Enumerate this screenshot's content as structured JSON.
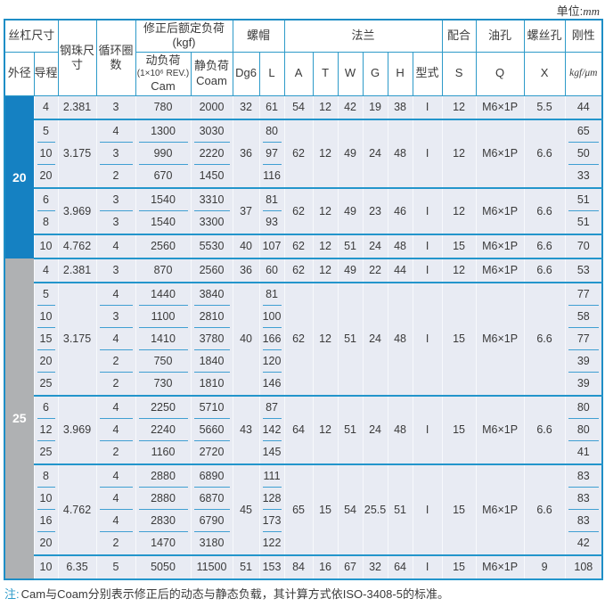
{
  "unit_label": "单位:",
  "unit_value": "mm",
  "header": {
    "screw_size": "丝杠尺寸",
    "outer_dia": "外径",
    "lead": "导程",
    "ball_size": "钢珠尺寸",
    "circuits": "循环圈数",
    "rated_load": "修正后额定负荷(kgf)",
    "dynamic_load_1": "动负荷",
    "dynamic_load_2": "(1×10⁶ REV.)",
    "dynamic_load_3": "Cam",
    "static_load_1": "静负荷",
    "static_load_2": "Coam",
    "nut": "螺帽",
    "dg6": "Dg6",
    "L": "L",
    "flange": "法兰",
    "A": "A",
    "T": "T",
    "W": "W",
    "G": "G",
    "H": "H",
    "type": "型式",
    "fit": "配合",
    "S": "S",
    "oil_hole": "油孔",
    "Q": "Q",
    "screw_hole": "螺丝孔",
    "X": "X",
    "rigidity": "刚性",
    "rigidity_unit": "kgf/μm"
  },
  "colors": {
    "od20_bg": "#1581C2",
    "od25_bg": "#AFB1B3",
    "line_blue": "#2395CB",
    "cell_bg": "#E8EBF3"
  },
  "od_groups": [
    {
      "od": "20",
      "bg": "#1581C2",
      "rows": 7
    },
    {
      "od": "25",
      "bg": "#AFB1B3",
      "rows": 14
    }
  ],
  "rows": [
    {
      "lead": "4",
      "ball": {
        "v": "2.381",
        "span": 1
      },
      "circ": "3",
      "cam": "780",
      "coam": "2000",
      "dg6": {
        "v": "32",
        "span": 1
      },
      "L": "61",
      "flange": {
        "span": 1,
        "A": "54",
        "T": "12",
        "W": "42",
        "G": "19",
        "H": "38",
        "type": "I",
        "S": "12",
        "Q": "M6×1P",
        "X": "5.5"
      },
      "rig": "44"
    },
    {
      "lead": "5",
      "ball": {
        "v": "3.175",
        "span": 3
      },
      "circ": "4",
      "cam": "1300",
      "coam": "3030",
      "dg6": {
        "v": "36",
        "span": 3
      },
      "L": "80",
      "flange": {
        "span": 3,
        "A": "62",
        "T": "12",
        "W": "49",
        "G": "24",
        "H": "48",
        "type": "I",
        "S": "12",
        "Q": "M6×1P",
        "X": "6.6"
      },
      "rig": "65"
    },
    {
      "lead": "10",
      "circ": "3",
      "cam": "990",
      "coam": "2220",
      "L": "97",
      "rig": "50"
    },
    {
      "lead": "20",
      "circ": "2",
      "cam": "670",
      "coam": "1450",
      "L": "116",
      "rig": "33"
    },
    {
      "lead": "6",
      "ball": {
        "v": "3.969",
        "span": 2
      },
      "circ": "3",
      "cam": "1540",
      "coam": "3310",
      "dg6": {
        "v": "37",
        "span": 2
      },
      "L": "81",
      "flange": {
        "span": 2,
        "A": "62",
        "T": "12",
        "W": "49",
        "G": "23",
        "H": "46",
        "type": "I",
        "S": "12",
        "Q": "M6×1P",
        "X": "6.6"
      },
      "rig": "51"
    },
    {
      "lead": "8",
      "circ": "3",
      "cam": "1540",
      "coam": "3300",
      "L": "93",
      "rig": "51"
    },
    {
      "lead": "10",
      "ball": {
        "v": "4.762",
        "span": 1
      },
      "circ": "4",
      "cam": "2560",
      "coam": "5530",
      "dg6": {
        "v": "40",
        "span": 1
      },
      "L": "107",
      "flange": {
        "span": 1,
        "A": "62",
        "T": "12",
        "W": "51",
        "G": "24",
        "H": "48",
        "type": "I",
        "S": "15",
        "Q": "M6×1P",
        "X": "6.6"
      },
      "rig": "70"
    },
    {
      "lead": "4",
      "ball": {
        "v": "2.381",
        "span": 1
      },
      "circ": "3",
      "cam": "870",
      "coam": "2560",
      "dg6": {
        "v": "36",
        "span": 1
      },
      "L": "60",
      "flange": {
        "span": 1,
        "A": "62",
        "T": "12",
        "W": "49",
        "G": "22",
        "H": "44",
        "type": "I",
        "S": "12",
        "Q": "M6×1P",
        "X": "6.6"
      },
      "rig": "53"
    },
    {
      "lead": "5",
      "ball": {
        "v": "3.175",
        "span": 5
      },
      "circ": "4",
      "cam": "1440",
      "coam": "3840",
      "dg6": {
        "v": "40",
        "span": 5
      },
      "L": "81",
      "flange": {
        "span": 5,
        "A": "62",
        "T": "12",
        "W": "51",
        "G": "24",
        "H": "48",
        "type": "I",
        "S": "15",
        "Q": "M6×1P",
        "X": "6.6"
      },
      "rig": "77"
    },
    {
      "lead": "10",
      "circ": "3",
      "cam": "1100",
      "coam": "2810",
      "L": "100",
      "rig": "58"
    },
    {
      "lead": "15",
      "circ": "4",
      "cam": "1410",
      "coam": "3780",
      "L": "166",
      "rig": "77"
    },
    {
      "lead": "20",
      "circ": "2",
      "cam": "750",
      "coam": "1840",
      "L": "120",
      "rig": "39"
    },
    {
      "lead": "25",
      "circ": "2",
      "cam": "730",
      "coam": "1810",
      "L": "146",
      "rig": "39"
    },
    {
      "lead": "6",
      "ball": {
        "v": "3.969",
        "span": 3
      },
      "circ": "4",
      "cam": "2250",
      "coam": "5710",
      "dg6": {
        "v": "43",
        "span": 3
      },
      "L": "87",
      "flange": {
        "span": 3,
        "A": "64",
        "T": "12",
        "W": "51",
        "G": "24",
        "H": "48",
        "type": "I",
        "S": "15",
        "Q": "M6×1P",
        "X": "6.6"
      },
      "rig": "80"
    },
    {
      "lead": "12",
      "circ": "4",
      "cam": "2240",
      "coam": "5660",
      "L": "142",
      "rig": "80"
    },
    {
      "lead": "25",
      "circ": "2",
      "cam": "1160",
      "coam": "2720",
      "L": "145",
      "rig": "41"
    },
    {
      "lead": "8",
      "ball": {
        "v": "4.762",
        "span": 4
      },
      "circ": "4",
      "cam": "2880",
      "coam": "6890",
      "dg6": {
        "v": "45",
        "span": 4
      },
      "L": "111",
      "flange": {
        "span": 4,
        "A": "65",
        "T": "15",
        "W": "54",
        "G": "25.5",
        "H": "51",
        "type": "I",
        "S": "15",
        "Q": "M6×1P",
        "X": "6.6"
      },
      "rig": "83"
    },
    {
      "lead": "10",
      "circ": "4",
      "cam": "2880",
      "coam": "6870",
      "L": "128",
      "rig": "83"
    },
    {
      "lead": "16",
      "circ": "4",
      "cam": "2830",
      "coam": "6790",
      "L": "173",
      "rig": "83"
    },
    {
      "lead": "20",
      "circ": "2",
      "cam": "1470",
      "coam": "3180",
      "L": "122",
      "rig": "42"
    },
    {
      "lead": "10",
      "ball": {
        "v": "6.35",
        "span": 1
      },
      "circ": "5",
      "cam": "5050",
      "coam": "11500",
      "dg6": {
        "v": "51",
        "span": 1
      },
      "flange": {
        "span": 1,
        "A": "84",
        "T": "16",
        "W": "67",
        "G": "32",
        "H": "64",
        "type": "I",
        "S": "15",
        "Q": "M6×1P",
        "X": "9"
      },
      "L": "153",
      "rig": "108"
    }
  ],
  "note": {
    "mark": "注:",
    "text": "Cam与Coam分别表示修正后的动态与静态负载，其计算方式依ISO-3408-5的标准。"
  }
}
